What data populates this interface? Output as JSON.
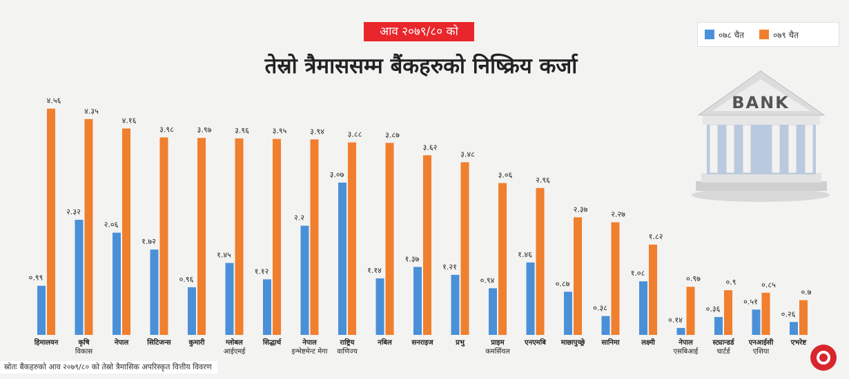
{
  "header": {
    "fiscal_year": "आव २०७९/८० को",
    "title": "तेस्रो त्रैमाससम्म बैंकहरुको निष्क्रिय कर्जा"
  },
  "bank_logo_text": "BANK",
  "source_note": "स्रोतः बैंकहरुको आव २०७९/८० को तेस्रो त्रैमासिक अपरिस्कृत वित्तीय विवरण",
  "colors": {
    "series_78": "#4a90d9",
    "series_79": "#f07f2e"
  },
  "chart_data": {
    "type": "bar",
    "title": "तेस्रो त्रैमाससम्म बैंकहरुको निष्क्रिय कर्जा",
    "legend_position": "top-right",
    "grid": false,
    "ylim": [
      0,
      4.7
    ],
    "categories": [
      [
        "हिमालयन"
      ],
      [
        "कृषि",
        "विकास"
      ],
      [
        "नेपाल"
      ],
      [
        "सिटिजन्स"
      ],
      [
        "कुमारी"
      ],
      [
        "ग्लोबल",
        "आईएमई"
      ],
      [
        "सिद्धार्थ"
      ],
      [
        "नेपाल",
        "इन्भेष्टमेन्ट मेगा"
      ],
      [
        "राष्ट्रिय",
        "वाणिज्य"
      ],
      [
        "नबिल"
      ],
      [
        "सनराइज"
      ],
      [
        "प्रभु"
      ],
      [
        "प्राइम",
        "कमर्सियल"
      ],
      [
        "एनएमबि"
      ],
      [
        "माछापुच्छ्रे"
      ],
      [
        "सानिमा"
      ],
      [
        "लक्ष्मी"
      ],
      [
        "नेपाल",
        "एसबिआई"
      ],
      [
        "स्ट्यान्डर्ड",
        "चार्टर्ड"
      ],
      [
        "एनआईसी",
        "एशिया"
      ],
      [
        "एभरेष्ट"
      ]
    ],
    "series": [
      {
        "name": "०७८ चैत",
        "values": [
          0.99,
          2.32,
          2.06,
          1.72,
          0.96,
          1.45,
          1.12,
          2.2,
          3.07,
          1.14,
          1.37,
          1.21,
          0.94,
          1.46,
          0.87,
          0.38,
          1.08,
          0.14,
          0.36,
          0.51,
          0.26
        ],
        "labels": [
          "०.९९",
          "२.३२",
          "२.०६",
          "१.७२",
          "०.९६",
          "१.४५",
          "१.१२",
          "२.२",
          "३.०७",
          "१.१४",
          "१.३७",
          "१.२१",
          "०.९४",
          "१.४६",
          "०.८७",
          "०.३८",
          "१.०८",
          "०.१४",
          "०.३६",
          "०.५१",
          "०.२६"
        ]
      },
      {
        "name": "०७९ चैत",
        "values": [
          4.56,
          4.35,
          4.16,
          3.98,
          3.97,
          3.96,
          3.95,
          3.94,
          3.88,
          3.87,
          3.62,
          3.48,
          3.06,
          2.96,
          2.37,
          2.27,
          1.82,
          0.97,
          0.9,
          0.85,
          0.7
        ],
        "labels": [
          "४.५६",
          "४.३५",
          "४.१६",
          "३.९८",
          "३.९७",
          "३.९६",
          "३.९५",
          "३.९४",
          "३.८८",
          "३.८७",
          "३.६२",
          "३.४८",
          "३.०६",
          "२.९६",
          "२.३७",
          "२.२७",
          "१.८२",
          "०.९७",
          "०.९",
          "०.८५",
          "०.७"
        ]
      }
    ]
  }
}
